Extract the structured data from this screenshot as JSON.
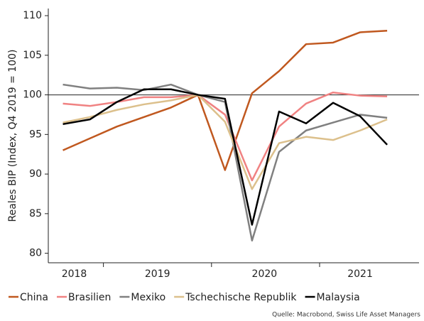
{
  "chart_data": {
    "type": "line",
    "y_label": "Reales BIP (Index, Q4 2019 = 100)",
    "source": "Quelle: Macrobond, Swiss Life Asset Managers",
    "x": [
      2018.625,
      2018.875,
      2019.125,
      2019.375,
      2019.625,
      2019.875,
      2020.125,
      2020.375,
      2020.625,
      2020.875,
      2021.125,
      2021.375,
      2021.625
    ],
    "xlim": [
      2018.49,
      2021.92
    ],
    "xticks": [
      2019,
      2020,
      2021
    ],
    "xlabels": [
      {
        "value": 2018.73,
        "label": "2018"
      },
      {
        "value": 2019.5,
        "label": "2019"
      },
      {
        "value": 2020.49,
        "label": "2020"
      },
      {
        "value": 2021.375,
        "label": "2021"
      }
    ],
    "ylim": [
      78.8,
      110.9
    ],
    "yticks": [
      80,
      85,
      90,
      95,
      100,
      105,
      110
    ],
    "reference_line": 100,
    "series": [
      {
        "name": "China",
        "color": "#c0581f",
        "values": [
          93,
          94.5,
          96,
          97.2,
          98.4,
          100,
          90.5,
          100.2,
          103,
          106.4,
          106.6,
          107.9,
          108.1
        ]
      },
      {
        "name": "Brasilien",
        "color": "#f08282",
        "values": [
          98.9,
          98.6,
          99.1,
          99.7,
          99.7,
          100,
          97.5,
          89.2,
          96,
          98.9,
          100.3,
          99.9,
          99.8
        ]
      },
      {
        "name": "Mexiko",
        "color": "#808080",
        "values": [
          101.3,
          100.8,
          100.9,
          100.6,
          101.3,
          100,
          99.1,
          81.6,
          92.8,
          95.5,
          96.5,
          97.5,
          97.1
        ]
      },
      {
        "name": "Tschechische Republik",
        "color": "#dcc08c",
        "values": [
          96.5,
          97.2,
          98.1,
          98.8,
          99.3,
          100,
          96.6,
          88.1,
          93.9,
          94.7,
          94.3,
          95.5,
          96.9
        ]
      },
      {
        "name": "Malaysia",
        "color": "#000000",
        "values": [
          96.3,
          96.9,
          99.1,
          100.7,
          100.7,
          100,
          99.5,
          83.6,
          97.9,
          96.4,
          99,
          97.3,
          93.7
        ]
      }
    ]
  }
}
